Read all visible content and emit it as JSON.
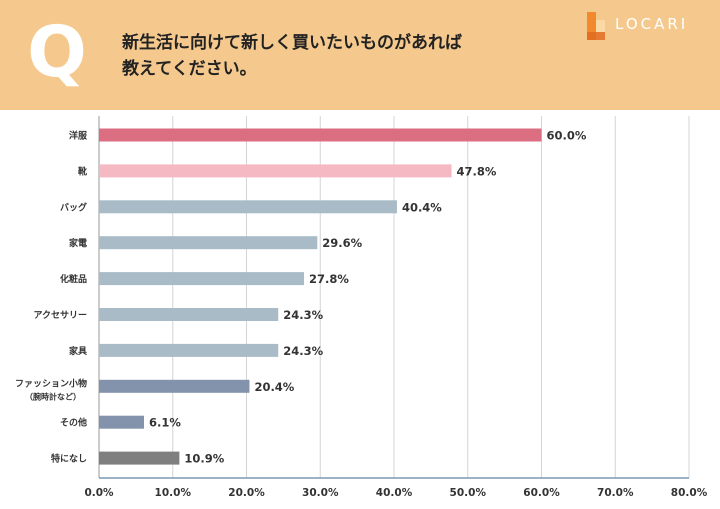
{
  "header": {
    "q_mark": "Q",
    "question_line1": "新生活に向けて新しく買いたいものがあれば",
    "question_line2": "教えてください。",
    "logo_text": "LOCARI",
    "bg_color": "#f5c98d"
  },
  "chart_data": {
    "type": "bar",
    "orientation": "horizontal",
    "title": "新生活に向けて新しく買いたいものがあれば教えてください。",
    "categories": [
      "洋服",
      "靴",
      "バッグ",
      "家電",
      "化粧品",
      "アクセサリー",
      "家具",
      "ファッション小物",
      "その他",
      "特になし"
    ],
    "category_sublabels": [
      "",
      "",
      "",
      "",
      "",
      "",
      "",
      "（腕時計など）",
      "",
      ""
    ],
    "values": [
      60.0,
      47.8,
      40.4,
      29.6,
      27.8,
      24.3,
      24.3,
      20.4,
      6.1,
      10.9
    ],
    "value_labels": [
      "60.0%",
      "47.8%",
      "40.4%",
      "29.6%",
      "27.8%",
      "24.3%",
      "24.3%",
      "20.4%",
      "6.1%",
      "10.9%"
    ],
    "colors": [
      "#db6e80",
      "#f5b9c3",
      "#a9bbc6",
      "#a9bbc6",
      "#a9bbc6",
      "#a9bbc6",
      "#a9bbc6",
      "#8493ac",
      "#8493ac",
      "#7f7f7f"
    ],
    "xlim": [
      0,
      80
    ],
    "xticks": [
      0,
      10,
      20,
      30,
      40,
      50,
      60,
      70,
      80
    ],
    "xtick_labels": [
      "0.0%",
      "10.0%",
      "20.0%",
      "30.0%",
      "40.0%",
      "50.0%",
      "60.0%",
      "70.0%",
      "80.0%"
    ],
    "grid": true
  }
}
